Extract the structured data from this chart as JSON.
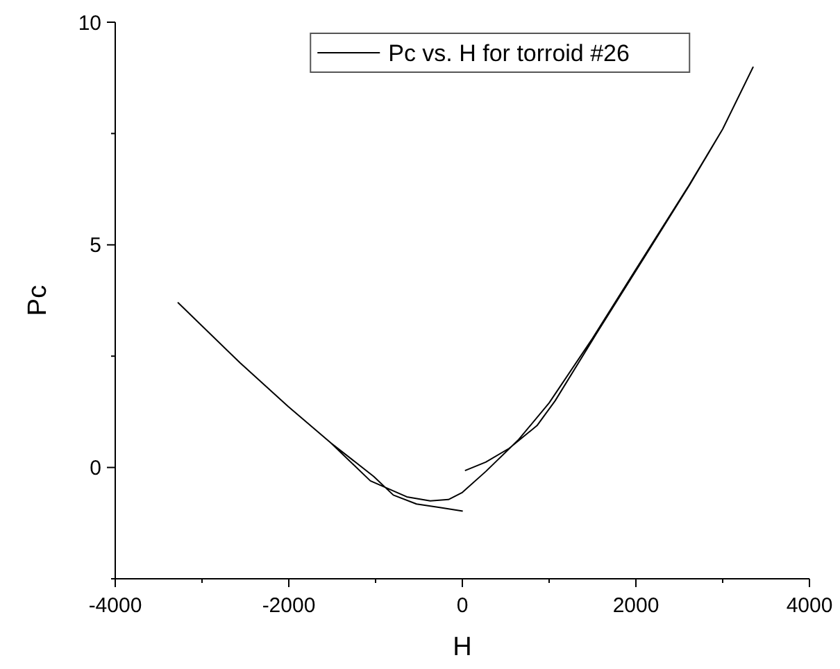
{
  "chart_data": {
    "type": "line",
    "xlabel": "H",
    "ylabel": "Pc",
    "xlim": [
      -4000,
      4000
    ],
    "ylim": [
      -2.5,
      10
    ],
    "xticks": [
      -4000,
      {
        "value": -3000,
        "label": null
      },
      -2000,
      {
        "value": -1000,
        "label": null
      },
      0,
      {
        "value": 1000,
        "label": null
      },
      2000,
      {
        "value": 3000,
        "label": null
      },
      4000
    ],
    "yticks": [
      {
        "value": -2.5,
        "label": null
      },
      0,
      {
        "value": 2.5,
        "label": null
      },
      5,
      {
        "value": 7.5,
        "label": null
      },
      10
    ],
    "grid": false,
    "legend": "top",
    "marker": "none",
    "line_style": "solid",
    "series": [
      {
        "name": "Pc vs. H for torroid #26",
        "color": "#000000",
        "x": [
          30,
          270,
          540,
          860,
          1070,
          1550,
          2085,
          2620,
          3000,
          3350,
          3000,
          2600,
          2000,
          1500,
          1000,
          650,
          270,
          0,
          -160,
          -370,
          -640,
          -1060,
          -1515,
          -2007,
          -2562,
          -3275,
          -2562,
          -2007,
          -1515,
          -1022,
          -795,
          -528,
          -261,
          5
        ],
        "values": [
          -0.07,
          0.12,
          0.43,
          0.94,
          1.5,
          3.02,
          4.68,
          6.35,
          7.6,
          8.99,
          7.6,
          6.3,
          4.45,
          2.9,
          1.45,
          0.63,
          -0.09,
          -0.56,
          -0.72,
          -0.75,
          -0.66,
          -0.3,
          0.55,
          1.37,
          2.35,
          3.7,
          2.35,
          1.37,
          0.55,
          -0.2,
          -0.62,
          -0.82,
          -0.9,
          -0.98
        ]
      }
    ]
  }
}
